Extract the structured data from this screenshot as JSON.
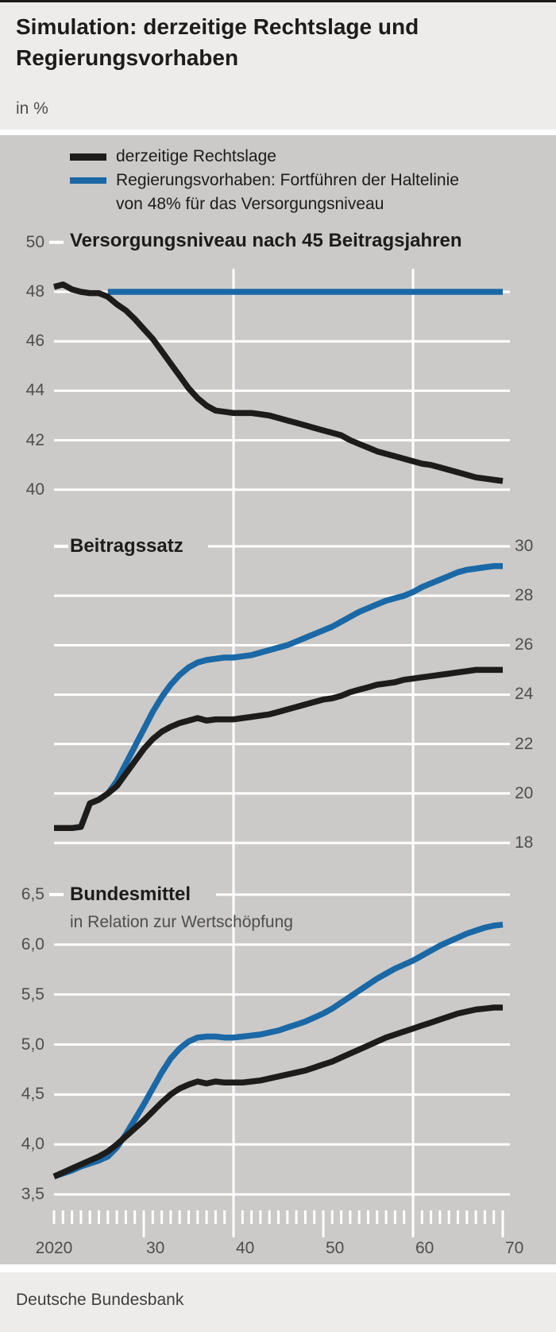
{
  "header": {
    "title_line1": "Simulation: derzeitige Rechtslage und",
    "title_line2": "Regierungsvorhaben",
    "unit_label": "in %"
  },
  "legend": {
    "items": [
      {
        "label_lines": [
          "derzeitige Rechtslage"
        ],
        "color_key": "black"
      },
      {
        "label_lines": [
          "Regierungsvorhaben: Fortführen der Haltelinie",
          "von 48% für das Versorgungsniveau"
        ],
        "color_key": "blue"
      }
    ]
  },
  "footer": {
    "source": "Deutsche Bundesbank"
  },
  "colors": {
    "black_line": "#1d1c1a",
    "blue_line": "#1a68a6",
    "plot_background": "#cbcac8",
    "panel_background": "#edecea",
    "gridline": "#ffffff",
    "axis_text": "#4e4e4e",
    "title_text": "#1d1c1b"
  },
  "x_axis": {
    "range": [
      2020,
      2070
    ],
    "minor_tick_interval": 1,
    "vertical_gridline_years": [
      2040,
      2060
    ],
    "labels": [
      {
        "text": "2020",
        "year": 2020,
        "center": true
      },
      {
        "text": "30",
        "year": 2030
      },
      {
        "text": "40",
        "year": 2040
      },
      {
        "text": "50",
        "year": 2050
      },
      {
        "text": "60",
        "year": 2060
      },
      {
        "text": "70",
        "year": 2070
      }
    ]
  },
  "chart_data": [
    {
      "type": "line",
      "title": "Versorgungsniveau nach 45 Beitragsjahren",
      "axis_side": "left",
      "x": {
        "start": 2020,
        "end": 2070,
        "step": 1
      },
      "yticks": [
        50,
        48,
        46,
        44,
        42,
        40
      ],
      "ytick_labels": [
        "50",
        "48",
        "46",
        "44",
        "42",
        "40"
      ],
      "ylim": [
        39.8,
        50.2
      ],
      "series": [
        {
          "name": "derzeitige Rechtslage",
          "color_key": "black",
          "values": [
            48.2,
            48.3,
            48.1,
            48.0,
            47.95,
            47.95,
            47.8,
            47.5,
            47.25,
            46.9,
            46.5,
            46.1,
            45.6,
            45.1,
            44.6,
            44.1,
            43.7,
            43.4,
            43.2,
            43.15,
            43.1,
            43.1,
            43.1,
            43.05,
            43.0,
            42.9,
            42.8,
            42.7,
            42.6,
            42.5,
            42.4,
            42.3,
            42.2,
            42.0,
            41.85,
            41.7,
            41.55,
            41.45,
            41.35,
            41.25,
            41.15,
            41.05,
            41.0,
            40.9,
            40.8,
            40.7,
            40.6,
            40.5,
            40.45,
            40.4,
            40.35
          ]
        },
        {
          "name": "Regierungsvorhaben",
          "color_key": "blue",
          "values": [
            null,
            null,
            null,
            null,
            null,
            null,
            48,
            48,
            48,
            48,
            48,
            48,
            48,
            48,
            48,
            48,
            48,
            48,
            48,
            48,
            48,
            48,
            48,
            48,
            48,
            48,
            48,
            48,
            48,
            48,
            48,
            48,
            48,
            48,
            48,
            48,
            48,
            48,
            48,
            48,
            48,
            48,
            48,
            48,
            48,
            48,
            48,
            48,
            48,
            48,
            48
          ]
        }
      ]
    },
    {
      "type": "line",
      "title": "Beitragssatz",
      "axis_side": "right",
      "x": {
        "start": 2020,
        "end": 2070,
        "step": 1
      },
      "yticks": [
        30,
        28,
        26,
        24,
        22,
        20,
        18
      ],
      "ytick_labels": [
        "30",
        "28",
        "26",
        "24",
        "22",
        "20",
        "18"
      ],
      "ylim": [
        17.8,
        30.2
      ],
      "series": [
        {
          "name": "derzeitige Rechtslage",
          "color_key": "black",
          "values": [
            18.6,
            18.6,
            18.6,
            18.65,
            19.6,
            19.75,
            20.0,
            20.3,
            20.8,
            21.3,
            21.8,
            22.2,
            22.5,
            22.7,
            22.85,
            22.95,
            23.05,
            22.95,
            23.0,
            23.0,
            23.0,
            23.05,
            23.1,
            23.15,
            23.2,
            23.3,
            23.4,
            23.5,
            23.6,
            23.7,
            23.8,
            23.85,
            23.95,
            24.1,
            24.2,
            24.3,
            24.4,
            24.45,
            24.5,
            24.6,
            24.65,
            24.7,
            24.75,
            24.8,
            24.85,
            24.9,
            24.95,
            25.0,
            25.0,
            25.0,
            25.0
          ]
        },
        {
          "name": "Regierungsvorhaben",
          "color_key": "blue",
          "values": [
            18.6,
            18.6,
            18.6,
            18.65,
            19.6,
            19.75,
            20.0,
            20.5,
            21.2,
            21.9,
            22.6,
            23.3,
            23.9,
            24.4,
            24.8,
            25.1,
            25.3,
            25.4,
            25.45,
            25.5,
            25.5,
            25.55,
            25.6,
            25.7,
            25.8,
            25.9,
            26.0,
            26.15,
            26.3,
            26.45,
            26.6,
            26.75,
            26.95,
            27.15,
            27.35,
            27.5,
            27.65,
            27.8,
            27.9,
            28.0,
            28.15,
            28.35,
            28.5,
            28.65,
            28.8,
            28.95,
            29.05,
            29.1,
            29.15,
            29.2,
            29.2
          ]
        }
      ]
    },
    {
      "type": "line",
      "title": "Bundesmittel",
      "subtitle": "in Relation zur Wertschöpfung",
      "axis_side": "left",
      "x": {
        "start": 2020,
        "end": 2070,
        "step": 1
      },
      "yticks": [
        6.5,
        6.0,
        5.5,
        5.0,
        4.5,
        4.0,
        3.5
      ],
      "ytick_labels": [
        "6,5",
        "6,0",
        "5,5",
        "5,0",
        "4,5",
        "4,0",
        "3,5"
      ],
      "ylim": [
        3.4,
        6.6
      ],
      "series": [
        {
          "name": "derzeitige Rechtslage",
          "color_key": "black",
          "values": [
            3.68,
            3.72,
            3.76,
            3.8,
            3.84,
            3.88,
            3.93,
            4.0,
            4.08,
            4.16,
            4.24,
            4.33,
            4.42,
            4.5,
            4.56,
            4.6,
            4.63,
            4.61,
            4.63,
            4.62,
            4.62,
            4.62,
            4.63,
            4.64,
            4.66,
            4.68,
            4.7,
            4.72,
            4.74,
            4.77,
            4.8,
            4.83,
            4.87,
            4.91,
            4.95,
            4.99,
            5.03,
            5.07,
            5.1,
            5.13,
            5.16,
            5.19,
            5.22,
            5.25,
            5.28,
            5.31,
            5.33,
            5.35,
            5.36,
            5.37,
            5.37
          ]
        },
        {
          "name": "Regierungsvorhaben",
          "color_key": "blue",
          "values": [
            3.68,
            3.71,
            3.74,
            3.78,
            3.81,
            3.84,
            3.88,
            3.97,
            4.1,
            4.25,
            4.4,
            4.56,
            4.72,
            4.86,
            4.96,
            5.03,
            5.07,
            5.08,
            5.08,
            5.07,
            5.07,
            5.08,
            5.09,
            5.1,
            5.12,
            5.14,
            5.17,
            5.2,
            5.23,
            5.27,
            5.31,
            5.36,
            5.42,
            5.48,
            5.54,
            5.6,
            5.66,
            5.71,
            5.76,
            5.8,
            5.84,
            5.89,
            5.94,
            5.99,
            6.03,
            6.07,
            6.11,
            6.14,
            6.17,
            6.19,
            6.2
          ]
        }
      ]
    }
  ]
}
